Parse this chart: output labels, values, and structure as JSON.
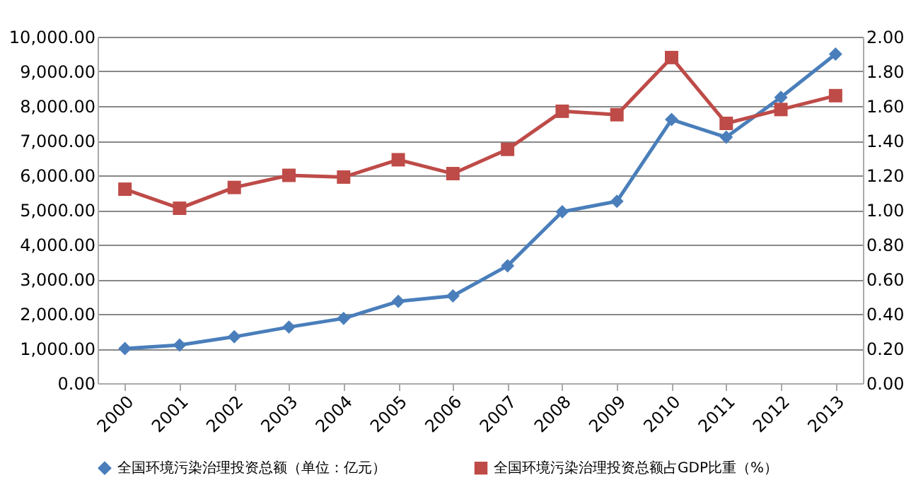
{
  "chart_data": {
    "type": "line",
    "categories": [
      "2000",
      "2001",
      "2002",
      "2003",
      "2004",
      "2005",
      "2006",
      "2007",
      "2008",
      "2009",
      "2010",
      "2011",
      "2012",
      "2013"
    ],
    "series": [
      {
        "name": "全国环境污染治理投资总额（单位：亿元）",
        "color": "#4a7ebb",
        "marker": "diamond",
        "values": [
          1000,
          1100,
          1340,
          1620,
          1870,
          2360,
          2520,
          3390,
          4950,
          5250,
          7610,
          7100,
          8250,
          9500
        ]
      },
      {
        "name": "全国环境污染治理投资总额占GDP比重（%）",
        "color": "#be4b48",
        "marker": "square",
        "axis": "y2",
        "values": [
          1.12,
          1.01,
          1.13,
          1.2,
          1.19,
          1.29,
          1.21,
          1.35,
          1.57,
          1.55,
          1.88,
          1.5,
          1.58,
          1.66
        ]
      }
    ],
    "ylim": [
      0,
      10000
    ],
    "yticks": [
      {
        "value": 0,
        "label": "0.00"
      },
      {
        "value": 1000,
        "label": "1,000.00"
      },
      {
        "value": 2000,
        "label": "2,000.00"
      },
      {
        "value": 3000,
        "label": "3,000.00"
      },
      {
        "value": 4000,
        "label": "4,000.00"
      },
      {
        "value": 5000,
        "label": "5,000.00"
      },
      {
        "value": 6000,
        "label": "6,000.00"
      },
      {
        "value": 7000,
        "label": "7,000.00"
      },
      {
        "value": 8000,
        "label": "8,000.00"
      },
      {
        "value": 9000,
        "label": "9,000.00"
      },
      {
        "value": 10000,
        "label": "10,000.00"
      }
    ],
    "y2lim": [
      0,
      2
    ],
    "y2ticks": [
      {
        "value": 0,
        "label": "0.00"
      },
      {
        "value": 0.2,
        "label": "0.20"
      },
      {
        "value": 0.4,
        "label": "0.40"
      },
      {
        "value": 0.6,
        "label": "0.60"
      },
      {
        "value": 0.8,
        "label": "0.80"
      },
      {
        "value": 1,
        "label": "1.00"
      },
      {
        "value": 1.2,
        "label": "1.20"
      },
      {
        "value": 1.4,
        "label": "1.40"
      },
      {
        "value": 1.6,
        "label": "1.60"
      },
      {
        "value": 1.8,
        "label": "1.80"
      },
      {
        "value": 2,
        "label": "2.00"
      }
    ],
    "grid": "y",
    "legend": "bottom",
    "line_style": "solid"
  }
}
